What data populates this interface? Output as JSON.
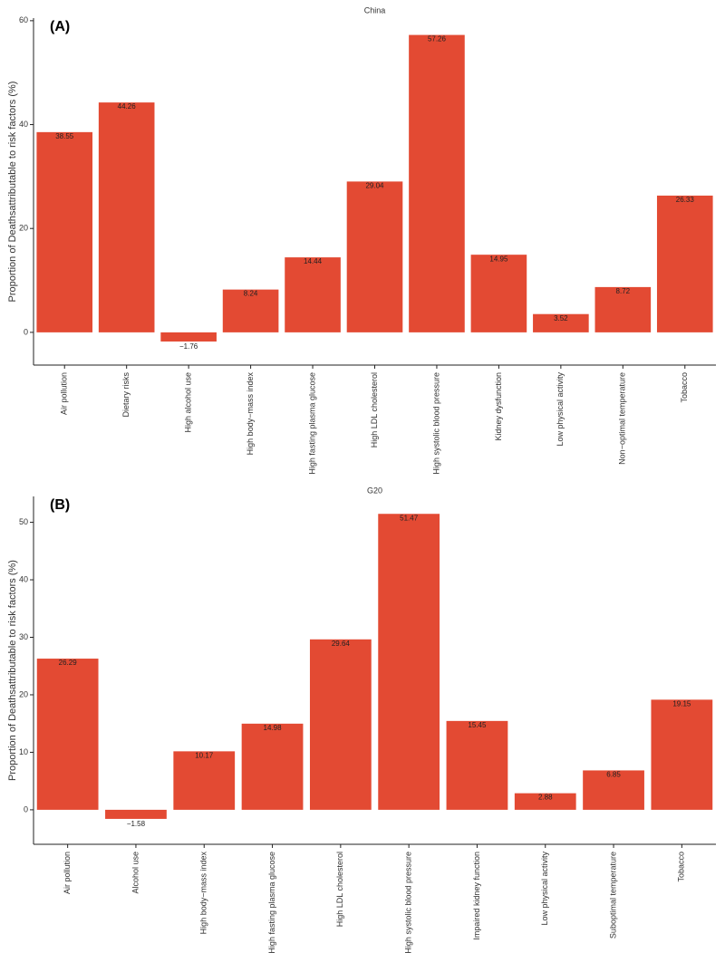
{
  "chart_data": [
    {
      "type": "bar",
      "panel_label": "(A)",
      "title": "China",
      "y_label": "Proportion of Deathsattributable to risk factors (%)",
      "categories": [
        "Air pollution",
        "Dietary risks",
        "High alcohol use",
        "High body−mass index",
        "High fasting plasma glucose",
        "High LDL cholesterol",
        "High systolic blood pressure",
        "Kidney dysfunction",
        "Low physical activity",
        "Non−optimal temperature",
        "Tobacco"
      ],
      "values": [
        38.55,
        44.26,
        -1.76,
        8.24,
        14.44,
        29.04,
        57.26,
        14.95,
        3.52,
        8.72,
        26.33
      ],
      "value_labels": [
        "38.55",
        "44.26",
        "−1.76",
        "8.24",
        "14.44",
        "29.04",
        "57.26",
        "14.95",
        "3.52",
        "8.72",
        "26.33"
      ],
      "color": "#e34a33",
      "ylim": [
        -6.3,
        60.5
      ],
      "yticks": [
        0,
        20,
        40,
        60
      ]
    },
    {
      "type": "bar",
      "panel_label": "(B)",
      "title": "G20",
      "y_label": "Proportion of Deathsattributable to risk factors (%)",
      "categories": [
        "Air pollution",
        "Alcohol use",
        "High body−mass index",
        "High fasting plasma glucose",
        "High LDL cholesterol",
        "High systolic blood pressure",
        "Impaired kidney function",
        "Low physical activity",
        "Suboptimal temperature",
        "Tobacco"
      ],
      "values": [
        26.29,
        -1.58,
        10.17,
        14.98,
        29.64,
        51.47,
        15.45,
        2.88,
        6.85,
        19.15
      ],
      "value_labels": [
        "26.29",
        "−1.58",
        "10.17",
        "14.98",
        "29.64",
        "51.47",
        "15.45",
        "2.88",
        "6.85",
        "19.15"
      ],
      "color": "#e34a33",
      "ylim": [
        -6,
        54.5
      ],
      "yticks": [
        0,
        10,
        20,
        30,
        40,
        50
      ]
    }
  ]
}
